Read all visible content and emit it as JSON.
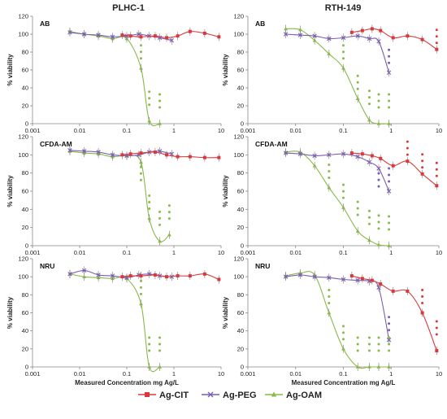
{
  "column_titles": [
    "PLHC-1",
    "RTH-149"
  ],
  "ylabel": "% viability",
  "xlabel": "Measured Concentration mg Ag/L",
  "y_ticks": [
    0,
    20,
    40,
    60,
    80,
    100,
    120
  ],
  "x_ticks": [
    "0.001",
    "0.01",
    "0.1",
    "1",
    "10"
  ],
  "series_colors": {
    "Ag-CIT": "#d9393c",
    "Ag-PEG": "#7a5fb0",
    "Ag-OAM": "#8ab84a"
  },
  "legend": [
    {
      "name": "Ag-CIT",
      "marker": "square",
      "color": "#d9393c"
    },
    {
      "name": "Ag-PEG",
      "marker": "x",
      "color": "#7a5fb0"
    },
    {
      "name": "Ag-OAM",
      "marker": "triangle",
      "color": "#8ab84a"
    }
  ],
  "chart_data": [
    {
      "type": "line",
      "panel": "PLHC-1 AB",
      "assay": "AB",
      "ylim": [
        0,
        120
      ],
      "xscale": "log",
      "xlim": [
        0.001,
        10
      ],
      "series": [
        {
          "name": "Ag-CIT",
          "x": [
            0.08,
            0.12,
            0.2,
            0.4,
            0.7,
            1.2,
            2.2,
            4.5,
            9
          ],
          "y": [
            99,
            98,
            97,
            98,
            96,
            98,
            103,
            101,
            97
          ]
        },
        {
          "name": "Ag-PEG",
          "x": [
            0.0062,
            0.0125,
            0.025,
            0.05,
            0.1,
            0.18,
            0.3,
            0.5,
            0.9
          ],
          "y": [
            102,
            100,
            99,
            97,
            98,
            100,
            98,
            96,
            93
          ]
        },
        {
          "name": "Ag-OAM",
          "x": [
            0.0062,
            0.0125,
            0.025,
            0.05,
            0.1,
            0.2,
            0.3,
            0.5
          ],
          "y": [
            103,
            100,
            98,
            95,
            95,
            62,
            3,
            0
          ]
        }
      ],
      "significance": [
        {
          "series": "Ag-OAM",
          "x": [
            0.2,
            0.3,
            0.5
          ],
          "stars": 3
        }
      ]
    },
    {
      "type": "line",
      "panel": "RTH-149 AB",
      "assay": "AB",
      "ylim": [
        0,
        120
      ],
      "xscale": "log",
      "xlim": [
        0.001,
        10
      ],
      "series": [
        {
          "name": "Ag-CIT",
          "x": [
            0.15,
            0.25,
            0.4,
            0.6,
            1.1,
            2.2,
            4.5,
            9
          ],
          "y": [
            102,
            104,
            106,
            104,
            96,
            98,
            94,
            83
          ]
        },
        {
          "name": "Ag-PEG",
          "x": [
            0.0062,
            0.0125,
            0.025,
            0.05,
            0.1,
            0.2,
            0.35,
            0.55,
            0.9
          ],
          "y": [
            100,
            99,
            98,
            95,
            96,
            98,
            95,
            92,
            57
          ]
        },
        {
          "name": "Ag-OAM",
          "x": [
            0.0062,
            0.0125,
            0.025,
            0.05,
            0.1,
            0.2,
            0.35,
            0.55,
            0.9
          ],
          "y": [
            106,
            105,
            93,
            78,
            62,
            28,
            4,
            0,
            0
          ]
        }
      ],
      "significance": [
        {
          "series": "Ag-CIT",
          "x": [
            9
          ],
          "stars": 3
        },
        {
          "series": "Ag-PEG",
          "x": [
            0.9
          ],
          "stars": 3
        },
        {
          "series": "Ag-OAM",
          "x": [
            0.1,
            0.2,
            0.35,
            0.55,
            0.9
          ],
          "stars": 3
        }
      ]
    },
    {
      "type": "line",
      "panel": "PLHC-1 CFDA-AM",
      "assay": "CFDA-AM",
      "ylim": [
        0,
        120
      ],
      "xscale": "log",
      "xlim": [
        0.001,
        10
      ],
      "series": [
        {
          "name": "Ag-CIT",
          "x": [
            0.08,
            0.12,
            0.2,
            0.4,
            0.7,
            1.2,
            2.2,
            4.5,
            9
          ],
          "y": [
            100,
            101,
            102,
            103,
            100,
            98,
            98,
            97,
            97
          ]
        },
        {
          "name": "Ag-PEG",
          "x": [
            0.0062,
            0.0125,
            0.025,
            0.05,
            0.1,
            0.18,
            0.3,
            0.5,
            0.9
          ],
          "y": [
            105,
            104,
            103,
            100,
            99,
            100,
            103,
            104,
            101
          ]
        },
        {
          "name": "Ag-OAM",
          "x": [
            0.0062,
            0.0125,
            0.025,
            0.05,
            0.1,
            0.2,
            0.3,
            0.5,
            0.8
          ],
          "y": [
            104,
            102,
            101,
            98,
            99,
            92,
            30,
            5,
            12
          ]
        }
      ],
      "significance": [
        {
          "series": "Ag-OAM",
          "x": [
            0.2,
            0.3,
            0.5,
            0.8
          ],
          "stars": 3
        }
      ]
    },
    {
      "type": "line",
      "panel": "RTH-149 CFDA-AM",
      "assay": "CFDA-AM",
      "ylim": [
        0,
        120
      ],
      "xscale": "log",
      "xlim": [
        0.001,
        10
      ],
      "series": [
        {
          "name": "Ag-CIT",
          "x": [
            0.15,
            0.25,
            0.4,
            0.6,
            1.1,
            2.2,
            4.5,
            9
          ],
          "y": [
            102,
            101,
            99,
            96,
            88,
            93,
            79,
            66
          ]
        },
        {
          "name": "Ag-PEG",
          "x": [
            0.0062,
            0.0125,
            0.025,
            0.05,
            0.1,
            0.2,
            0.35,
            0.55,
            0.9
          ],
          "y": [
            102,
            101,
            99,
            100,
            101,
            98,
            92,
            85,
            60
          ]
        },
        {
          "name": "Ag-OAM",
          "x": [
            0.0062,
            0.0125,
            0.025,
            0.05,
            0.1,
            0.2,
            0.35,
            0.55,
            0.9
          ],
          "y": [
            103,
            103,
            88,
            64,
            42,
            16,
            6,
            1,
            0
          ]
        }
      ],
      "significance": [
        {
          "series": "Ag-CIT",
          "x": [
            2.2,
            4.5,
            9
          ],
          "stars": 3
        },
        {
          "series": "Ag-PEG",
          "x": [
            0.55,
            0.9
          ],
          "stars": 3
        },
        {
          "series": "Ag-OAM",
          "x": [
            0.05,
            0.1,
            0.2,
            0.35,
            0.55,
            0.9
          ],
          "stars": 3
        }
      ]
    },
    {
      "type": "line",
      "panel": "PLHC-1 NRU",
      "assay": "NRU",
      "ylim": [
        0,
        120
      ],
      "xscale": "log",
      "xlim": [
        0.001,
        10
      ],
      "series": [
        {
          "name": "Ag-CIT",
          "x": [
            0.08,
            0.12,
            0.2,
            0.4,
            0.7,
            1.2,
            2.2,
            4.5,
            9
          ],
          "y": [
            100,
            101,
            101,
            102,
            100,
            101,
            101,
            103,
            97
          ]
        },
        {
          "name": "Ag-PEG",
          "x": [
            0.0062,
            0.0125,
            0.025,
            0.05,
            0.1,
            0.18,
            0.3,
            0.5,
            0.9
          ],
          "y": [
            103,
            107,
            102,
            101,
            99,
            102,
            103,
            101,
            100
          ]
        },
        {
          "name": "Ag-OAM",
          "x": [
            0.0062,
            0.0125,
            0.025,
            0.05,
            0.1,
            0.2,
            0.3,
            0.5
          ],
          "y": [
            103,
            100,
            99,
            98,
            98,
            70,
            0,
            0
          ]
        }
      ],
      "significance": [
        {
          "series": "Ag-OAM",
          "x": [
            0.2,
            0.3,
            0.5
          ],
          "stars": 3
        }
      ]
    },
    {
      "type": "line",
      "panel": "RTH-149 NRU",
      "assay": "NRU",
      "ylim": [
        0,
        120
      ],
      "xscale": "log",
      "xlim": [
        0.001,
        10
      ],
      "series": [
        {
          "name": "Ag-CIT",
          "x": [
            0.15,
            0.25,
            0.4,
            0.6,
            1.1,
            2.2,
            4.5,
            9
          ],
          "y": [
            101,
            98,
            96,
            92,
            84,
            84,
            60,
            18
          ]
        },
        {
          "name": "Ag-PEG",
          "x": [
            0.0062,
            0.0125,
            0.025,
            0.05,
            0.1,
            0.2,
            0.35,
            0.55,
            0.9
          ],
          "y": [
            100,
            102,
            100,
            99,
            97,
            96,
            95,
            88,
            30
          ]
        },
        {
          "name": "Ag-OAM",
          "x": [
            0.0062,
            0.0125,
            0.025,
            0.05,
            0.1,
            0.2,
            0.35,
            0.55,
            0.9
          ],
          "y": [
            101,
            104,
            102,
            60,
            20,
            0,
            0,
            0,
            0
          ]
        }
      ],
      "significance": [
        {
          "series": "Ag-CIT",
          "x": [
            4.5,
            9
          ],
          "stars": 3
        },
        {
          "series": "Ag-PEG",
          "x": [
            0.9
          ],
          "stars": 3
        },
        {
          "series": "Ag-OAM",
          "x": [
            0.05,
            0.1,
            0.2,
            0.35,
            0.55,
            0.9
          ],
          "stars": 3
        }
      ]
    }
  ]
}
